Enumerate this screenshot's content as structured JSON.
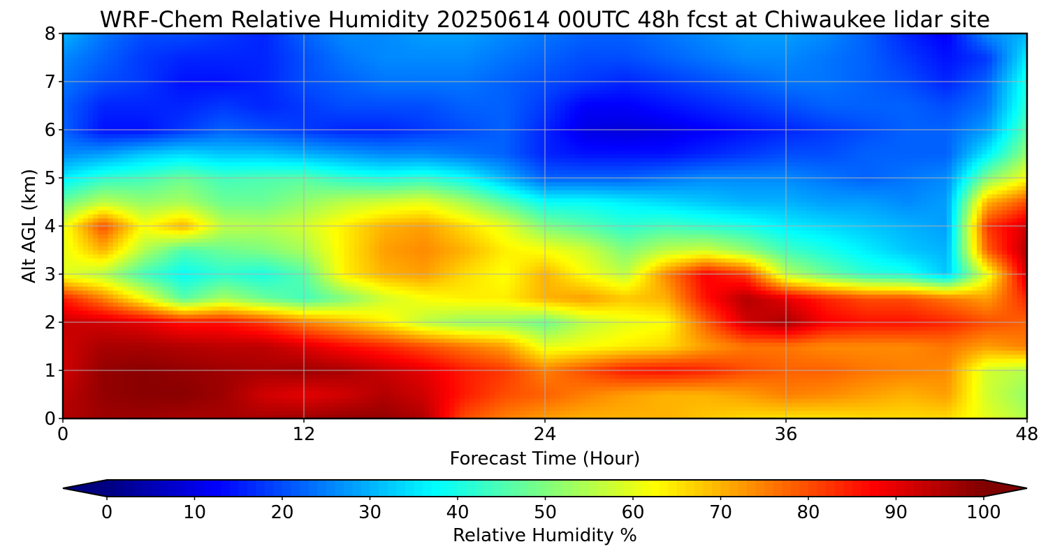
{
  "chart_data": {
    "type": "heatmap",
    "title": "WRF-Chem Relative Humidity 20250614 00UTC 48h fcst at Chiwaukee lidar site",
    "xlabel": "Forecast Time (Hour)",
    "ylabel": "Alt AGL (km)",
    "xlim": [
      0,
      48
    ],
    "ylim": [
      0,
      8
    ],
    "xticks": [
      0,
      12,
      24,
      36,
      48
    ],
    "yticks": [
      0,
      1,
      2,
      3,
      4,
      5,
      6,
      7,
      8
    ],
    "grid": true,
    "colormap": "jet",
    "colorbar": {
      "label": "Relative Humidity %",
      "min": 0,
      "max": 100,
      "ticks": [
        0,
        10,
        20,
        30,
        40,
        50,
        60,
        70,
        80,
        90,
        100
      ],
      "extend": "both"
    },
    "x": [
      0,
      2,
      4,
      6,
      8,
      10,
      12,
      14,
      16,
      18,
      20,
      22,
      24,
      26,
      28,
      30,
      32,
      34,
      36,
      38,
      40,
      42,
      44,
      46,
      48
    ],
    "y": [
      0,
      0.5,
      1,
      1.5,
      2,
      2.5,
      3,
      3.5,
      4,
      4.5,
      5,
      5.5,
      6,
      6.5,
      7,
      7.5,
      8
    ],
    "z": [
      [
        95,
        97,
        97,
        96,
        96,
        96,
        97,
        98,
        98,
        95,
        80,
        75,
        72,
        70,
        70,
        70,
        68,
        66,
        65,
        65,
        66,
        66,
        66,
        60,
        55
      ],
      [
        94,
        98,
        99,
        99,
        97,
        92,
        90,
        92,
        95,
        92,
        85,
        80,
        78,
        75,
        72,
        70,
        70,
        72,
        75,
        74,
        72,
        70,
        72,
        58,
        52
      ],
      [
        92,
        98,
        99,
        98,
        97,
        96,
        97,
        96,
        93,
        90,
        85,
        82,
        75,
        80,
        85,
        86,
        84,
        80,
        78,
        78,
        76,
        75,
        74,
        58,
        55
      ],
      [
        92,
        96,
        96,
        95,
        94,
        94,
        91,
        87,
        84,
        80,
        76,
        72,
        60,
        62,
        64,
        66,
        72,
        76,
        76,
        74,
        74,
        74,
        76,
        72,
        75
      ],
      [
        93,
        92,
        90,
        86,
        86,
        82,
        75,
        70,
        64,
        56,
        52,
        52,
        48,
        56,
        60,
        62,
        78,
        92,
        96,
        88,
        86,
        86,
        84,
        80,
        78
      ],
      [
        85,
        75,
        62,
        46,
        54,
        48,
        44,
        50,
        58,
        62,
        64,
        64,
        70,
        72,
        68,
        70,
        86,
        95,
        90,
        84,
        80,
        80,
        76,
        72,
        84
      ],
      [
        60,
        55,
        44,
        38,
        42,
        40,
        46,
        64,
        70,
        72,
        66,
        62,
        70,
        62,
        56,
        74,
        88,
        82,
        56,
        48,
        42,
        40,
        32,
        60,
        92
      ],
      [
        60,
        70,
        55,
        45,
        48,
        50,
        54,
        64,
        72,
        74,
        70,
        64,
        62,
        58,
        50,
        56,
        58,
        52,
        44,
        40,
        36,
        32,
        30,
        78,
        95
      ],
      [
        60,
        80,
        62,
        70,
        56,
        55,
        58,
        64,
        70,
        72,
        66,
        60,
        50,
        46,
        42,
        44,
        42,
        40,
        36,
        34,
        32,
        30,
        28,
        82,
        92
      ],
      [
        48,
        56,
        52,
        54,
        48,
        48,
        52,
        56,
        58,
        60,
        54,
        46,
        38,
        38,
        36,
        34,
        32,
        30,
        30,
        28,
        28,
        26,
        28,
        70,
        80
      ],
      [
        36,
        42,
        44,
        48,
        44,
        45,
        46,
        42,
        40,
        42,
        38,
        30,
        22,
        22,
        22,
        24,
        26,
        26,
        26,
        24,
        22,
        24,
        26,
        50,
        62
      ],
      [
        26,
        28,
        32,
        34,
        32,
        32,
        30,
        28,
        26,
        26,
        24,
        22,
        16,
        14,
        14,
        14,
        16,
        18,
        20,
        20,
        22,
        22,
        22,
        36,
        52
      ],
      [
        22,
        14,
        14,
        18,
        22,
        20,
        18,
        16,
        16,
        18,
        20,
        22,
        16,
        10,
        9,
        10,
        12,
        14,
        16,
        18,
        20,
        22,
        22,
        28,
        46
      ],
      [
        22,
        16,
        16,
        16,
        18,
        16,
        18,
        20,
        20,
        20,
        22,
        22,
        18,
        12,
        12,
        14,
        16,
        18,
        20,
        22,
        22,
        22,
        20,
        24,
        42
      ],
      [
        24,
        20,
        18,
        14,
        14,
        16,
        20,
        22,
        24,
        24,
        24,
        22,
        20,
        18,
        16,
        18,
        20,
        22,
        24,
        24,
        22,
        20,
        16,
        22,
        40
      ],
      [
        26,
        22,
        18,
        16,
        16,
        16,
        20,
        24,
        26,
        26,
        26,
        24,
        22,
        20,
        20,
        22,
        24,
        26,
        26,
        24,
        22,
        18,
        14,
        18,
        36
      ],
      [
        30,
        24,
        20,
        20,
        18,
        16,
        22,
        26,
        26,
        28,
        28,
        26,
        24,
        22,
        22,
        24,
        26,
        28,
        28,
        26,
        22,
        16,
        12,
        26,
        30
      ]
    ]
  }
}
